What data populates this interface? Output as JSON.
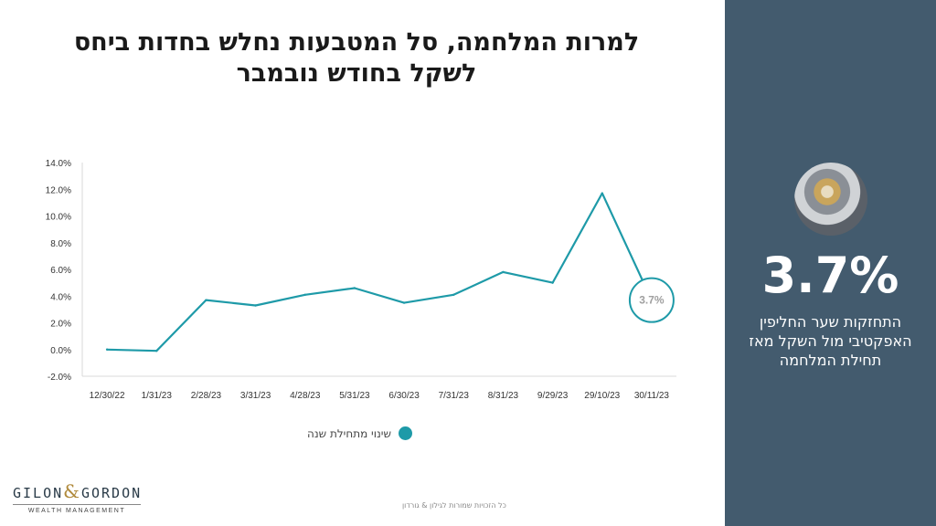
{
  "title": {
    "line1": "למרות המלחמה, סל המטבעות נחלש בחדות ביחס",
    "line2": "לשקל בחודש נובמבר"
  },
  "chart_data": {
    "type": "line",
    "categories": [
      "12/30/22",
      "1/31/23",
      "2/28/23",
      "3/31/23",
      "4/28/23",
      "5/31/23",
      "6/30/23",
      "7/31/23",
      "8/31/23",
      "9/29/23",
      "29/10/23",
      "30/11/23"
    ],
    "series": [
      {
        "name": "שינוי מתחילת שנה",
        "values": [
          0.0,
          -0.1,
          3.7,
          3.3,
          4.1,
          4.6,
          3.5,
          4.1,
          5.8,
          5.0,
          11.7,
          3.7
        ]
      }
    ],
    "ylim": [
      -2,
      14
    ],
    "yticks": [
      -2,
      0,
      2,
      4,
      6,
      8,
      10,
      12,
      14
    ],
    "ytick_labels": [
      "-2.0%",
      "0.0%",
      "2.0%",
      "4.0%",
      "6.0%",
      "8.0%",
      "10.0%",
      "12.0%",
      "14.0%"
    ],
    "annotation": {
      "label": "3.7%",
      "category": "30/11/23"
    },
    "legend_position": "bottom",
    "grid": false,
    "line_color": "#1e9aa8"
  },
  "side": {
    "big_number": "3.7%",
    "description": "התחזקות שער החליפין האפקטיבי מול השקל מאז תחילת המלחמה",
    "image_icon": "coins-icon"
  },
  "logo": {
    "left": "GILON",
    "amp": "&",
    "right": "GORDON",
    "sub": "WEALTH MANAGEMENT"
  },
  "footer": "כל הזכויות שמורות לגילון & גורדון",
  "colors": {
    "sidebar": "#435b6e",
    "accent": "#1e9aa8"
  }
}
